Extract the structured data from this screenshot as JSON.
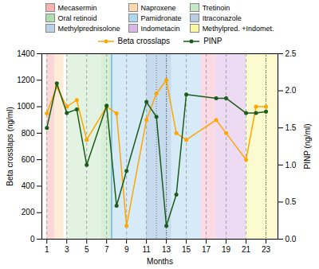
{
  "chart_data": {
    "type": "line",
    "xlabel": "Months",
    "ylabel": "Beta crosslaps (ng/ml)",
    "y2label": "PINP (ng/ml)",
    "xlim": [
      0.5,
      24.2
    ],
    "xticks": [
      1,
      3,
      5,
      7,
      9,
      11,
      13,
      15,
      17,
      19,
      21,
      23
    ],
    "ylim": [
      0,
      1400
    ],
    "yticks": [
      0,
      200,
      400,
      600,
      800,
      1000,
      1200,
      1400
    ],
    "y2lim": [
      0.0,
      2.5
    ],
    "y2ticks": [
      {
        "value": 0.0,
        "label": "0.0"
      },
      0.5,
      {
        "value": 1.0,
        "label": "1.0"
      },
      1.5,
      {
        "value": 2.0,
        "label": "2.0"
      },
      2.5
    ],
    "grid": false,
    "series": [
      {
        "name": "Beta crosslaps",
        "color": "#FFA500",
        "marker": "circle",
        "line_style": "solid",
        "x": [
          1,
          2,
          3,
          4,
          5,
          7,
          8,
          9,
          11,
          12,
          13,
          14,
          15,
          18,
          19,
          21,
          22,
          23
        ],
        "values": [
          950,
          1150,
          1000,
          1050,
          750,
          1000,
          950,
          100,
          900,
          1100,
          1200,
          800,
          750,
          900,
          800,
          600,
          1000,
          1000
        ]
      },
      {
        "name": "PINP",
        "color": "#1a5c1a",
        "marker": "circle",
        "line_style": "solid",
        "axis": "y2",
        "x": [
          1,
          2,
          3,
          4,
          5,
          7,
          8,
          9,
          11,
          12,
          13,
          14,
          15,
          18,
          19,
          21,
          22,
          23
        ],
        "values": [
          1.5,
          2.1,
          1.7,
          1.75,
          1.0,
          1.8,
          0.45,
          0.92,
          1.85,
          1.65,
          0.18,
          0.6,
          1.95,
          1.9,
          1.9,
          1.7,
          1.7,
          1.72
        ]
      }
    ],
    "regions": [
      {
        "xmin": 1.0,
        "xmax": 1.8,
        "color": "#f7b2b2"
      },
      {
        "xmin": 1.8,
        "xmax": 2.7,
        "color": "#fcd9b0"
      },
      {
        "xmin": 3.0,
        "xmax": 6.5,
        "color": "#c5e8c5"
      },
      {
        "xmin": 6.5,
        "xmax": 7.5,
        "color": "#b0ddb0"
      },
      {
        "xmin": 7.5,
        "xmax": 16.5,
        "color": "#aed6f1"
      },
      {
        "xmin": 11.0,
        "xmax": 13.5,
        "color": "#b8cce4"
      },
      {
        "xmin": 16.5,
        "xmax": 18.0,
        "color": "#f5b8cc"
      },
      {
        "xmin": 18.0,
        "xmax": 21.0,
        "color": "#d9b8e8"
      },
      {
        "xmin": 21.0,
        "xmax": 24.5,
        "color": "#f9f7a0"
      }
    ],
    "vlines": [
      {
        "x": [
          1,
          3,
          5,
          7,
          9,
          11,
          13,
          15,
          17,
          19,
          21,
          23
        ],
        "color": "gray",
        "line_style": "dashed"
      },
      {
        "x": [
          7.5
        ],
        "color": "#3399cc",
        "line_style": "solid"
      },
      {
        "x": [
          12,
          13,
          23
        ],
        "color": "#333333",
        "line_style": "dotted"
      }
    ],
    "legend_patches": [
      {
        "label": "Mecasermin",
        "color": "#f7b2b2"
      },
      {
        "label": "Naproxene",
        "color": "#fcd9b0"
      },
      {
        "label": "Tretinoin",
        "color": "#c5e8c5"
      },
      {
        "label": "Oral retinoid",
        "color": "#b0ddb0"
      },
      {
        "label": "Pamidronate",
        "color": "#aed6f1"
      },
      {
        "label": "Itraconazole",
        "color": "#b8cce4"
      },
      {
        "label": "Methylprednisolone",
        "color": "#b8d0e8"
      },
      {
        "label": "Indometacin",
        "color": "#d9b8e8"
      },
      {
        "label": "Methylpred. +Indomet.",
        "color": "#f9f7a0"
      }
    ]
  }
}
